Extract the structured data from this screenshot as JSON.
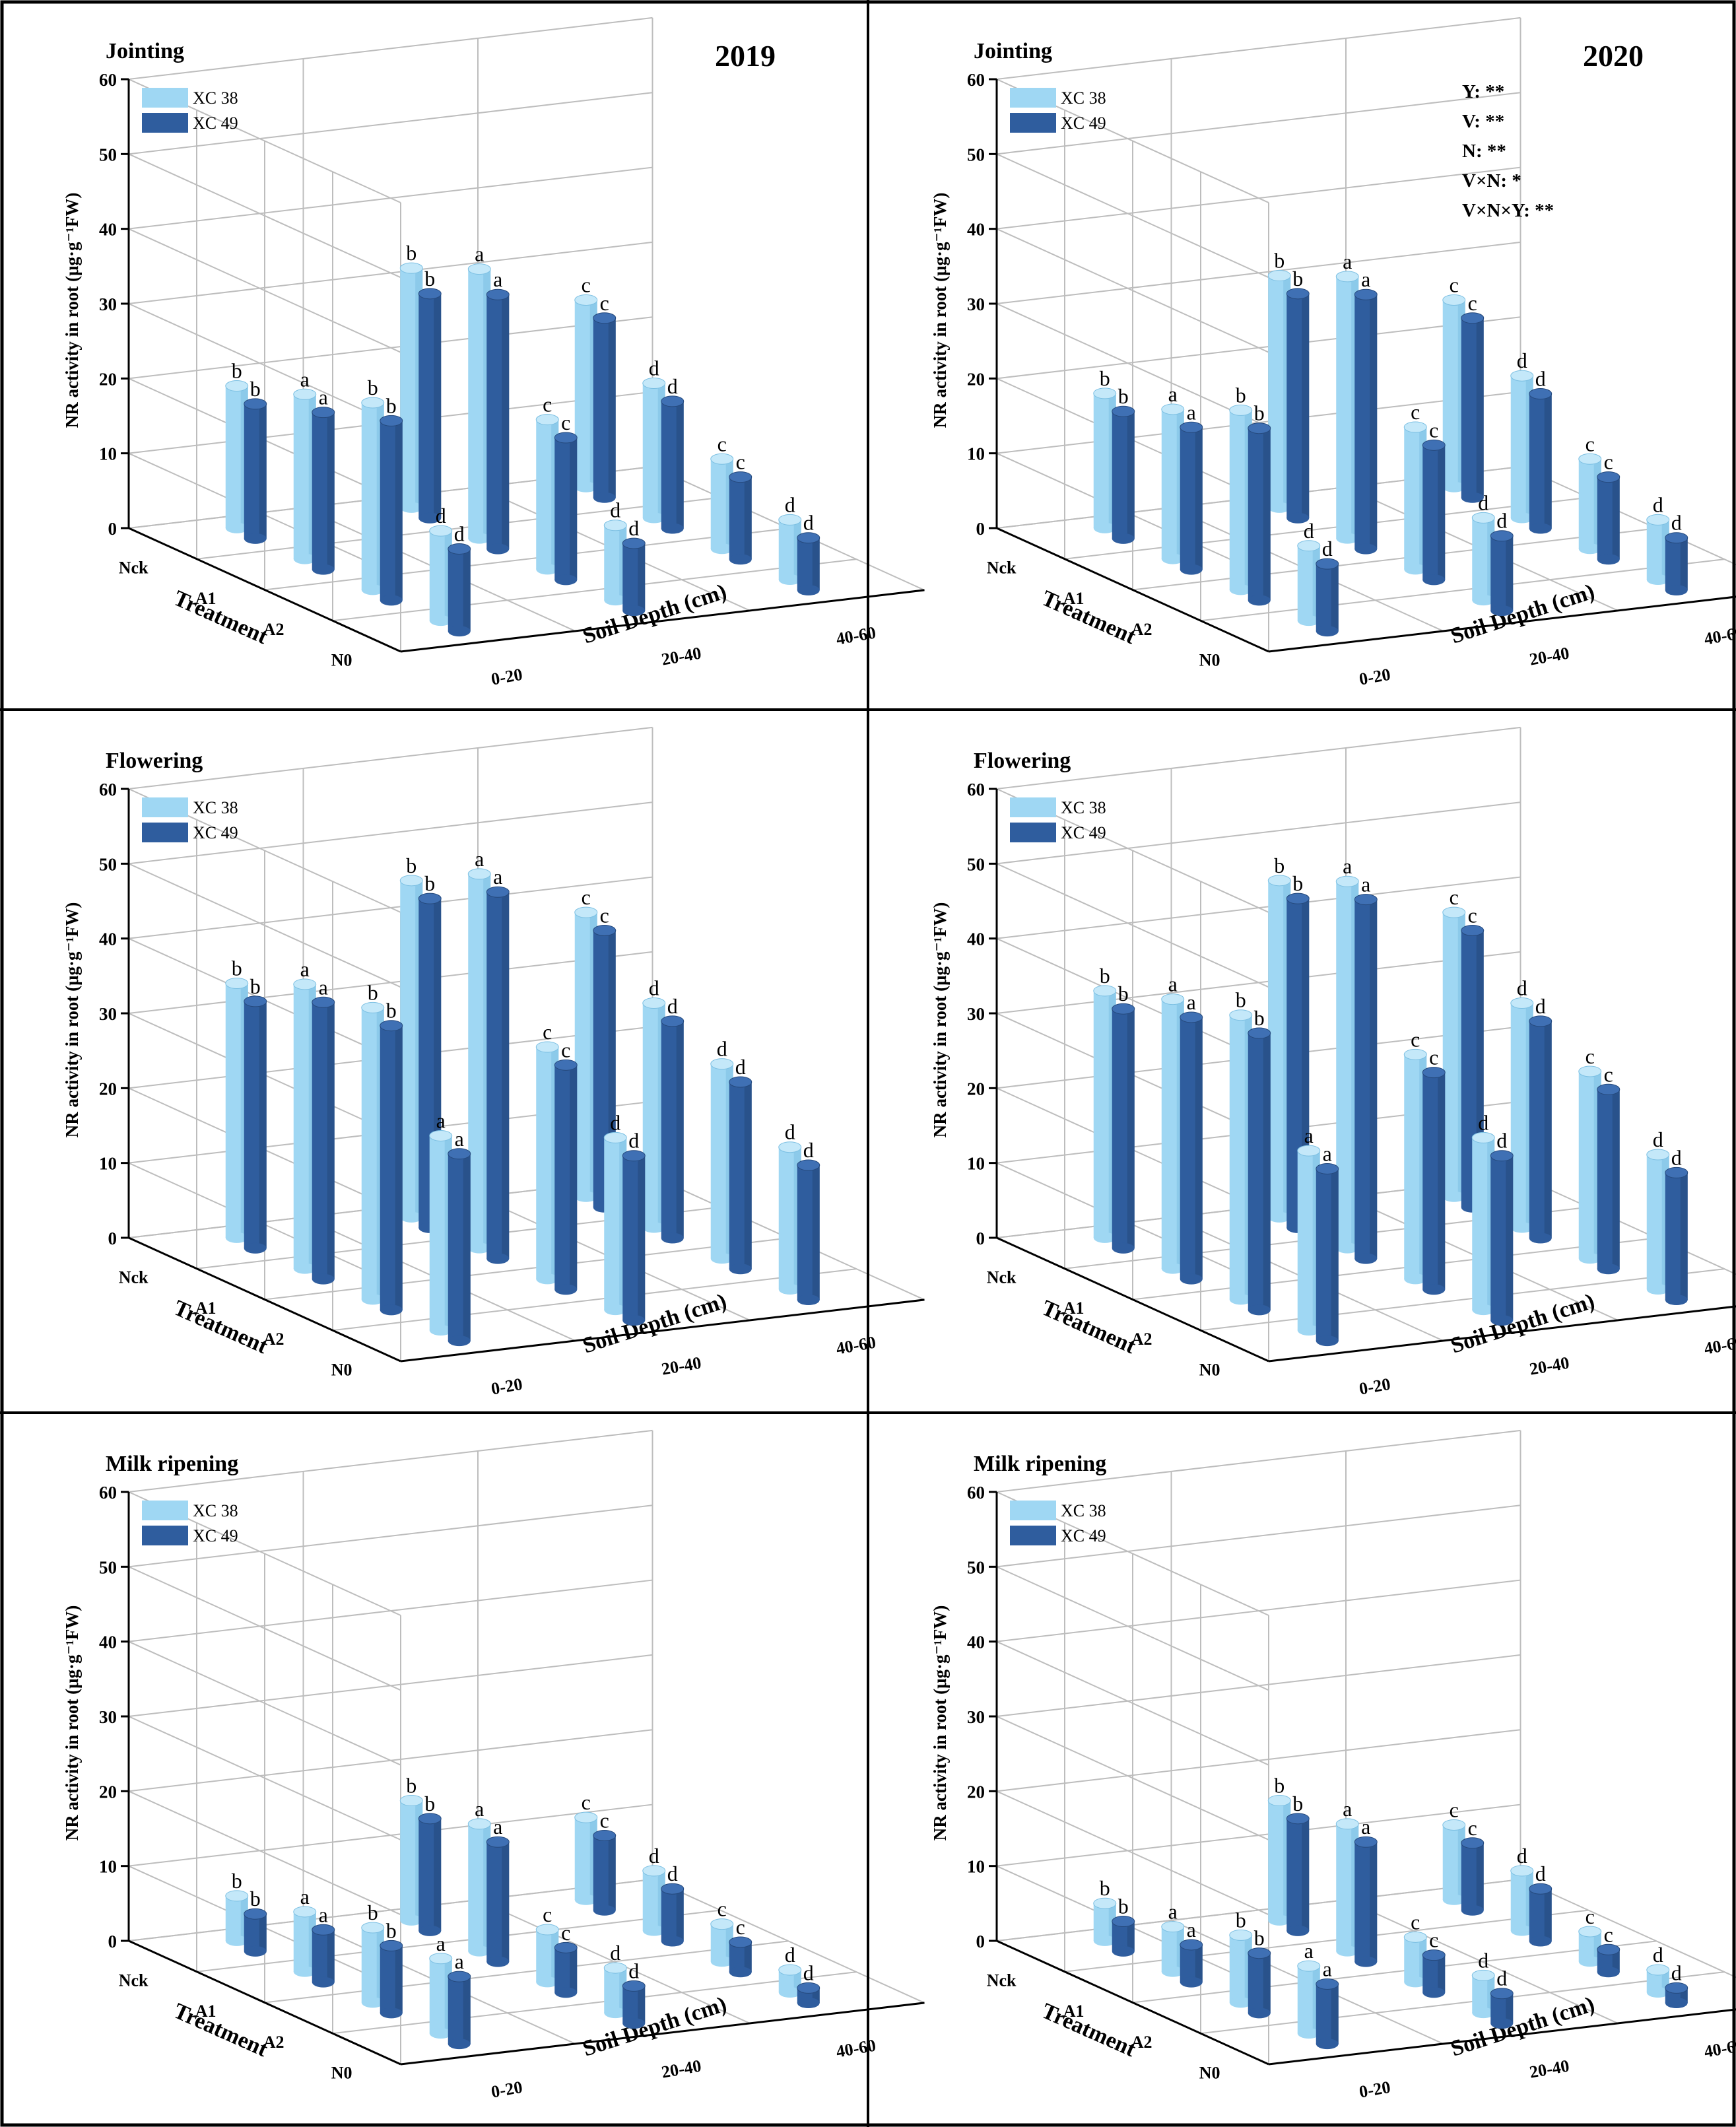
{
  "figure": {
    "ylabel": "NR activity in root (μg·g⁻¹FW)",
    "xlabel": "Soil Depth (cm)",
    "zlabel": "Treatment",
    "y_ticks": [
      "0",
      "10",
      "20",
      "30",
      "40",
      "50",
      "60"
    ],
    "depth_ticks": [
      "0-20",
      "20-40",
      "40-60"
    ],
    "treatment_ticks": [
      "Nck",
      "A1",
      "A2",
      "N0"
    ],
    "legend": [
      "XC 38",
      "XC 49"
    ],
    "colors": {
      "XC 38": "#9fd7f3",
      "XC 49": "#2f5d9e",
      "grid": "#bdbdbd",
      "frame": "#000000"
    }
  },
  "chart_data": [
    {
      "type": "bar",
      "panel": "2019-jointing",
      "title": "Jointing",
      "year_label": "2019",
      "stats": [],
      "ylim": [
        0,
        60
      ],
      "treatments": [
        "Nck",
        "A1",
        "A2",
        "N0"
      ],
      "depths": [
        "0-20",
        "20-40",
        "40-60"
      ],
      "series": [
        {
          "name": "XC 38",
          "values": [
            [
              19,
              32,
              25
            ],
            [
              22,
              36,
              18
            ],
            [
              25,
              20,
              12
            ],
            [
              12,
              10,
              8
            ]
          ]
        },
        {
          "name": "XC 49",
          "values": [
            [
              18,
              30,
              24
            ],
            [
              21,
              34,
              17
            ],
            [
              24,
              19,
              11
            ],
            [
              11,
              9,
              7
            ]
          ]
        }
      ],
      "letters": [
        [
          "b",
          "b",
          "c"
        ],
        [
          "a",
          "a",
          "d"
        ],
        [
          "b",
          "c",
          "c"
        ],
        [
          "d",
          "d",
          "d"
        ]
      ]
    },
    {
      "type": "bar",
      "panel": "2020-jointing",
      "title": "Jointing",
      "year_label": "2020",
      "stats": [
        "Y: **",
        "V: **",
        "N: **",
        "V×N: *",
        "V×N×Y: **"
      ],
      "ylim": [
        0,
        60
      ],
      "treatments": [
        "Nck",
        "A1",
        "A2",
        "N0"
      ],
      "depths": [
        "0-20",
        "20-40",
        "40-60"
      ],
      "series": [
        {
          "name": "XC 38",
          "values": [
            [
              18,
              31,
              25
            ],
            [
              20,
              35,
              19
            ],
            [
              24,
              19,
              12
            ],
            [
              10,
              11,
              8
            ]
          ]
        },
        {
          "name": "XC 49",
          "values": [
            [
              17,
              30,
              24
            ],
            [
              19,
              34,
              18
            ],
            [
              23,
              18,
              11
            ],
            [
              9,
              10,
              7
            ]
          ]
        }
      ],
      "letters": [
        [
          "b",
          "b",
          "c"
        ],
        [
          "a",
          "a",
          "d"
        ],
        [
          "b",
          "c",
          "c"
        ],
        [
          "d",
          "d",
          "d"
        ]
      ]
    },
    {
      "type": "bar",
      "panel": "2019-flowering",
      "title": "Flowering",
      "year_label": "",
      "stats": [],
      "ylim": [
        0,
        60
      ],
      "treatments": [
        "Nck",
        "A1",
        "A2",
        "N0"
      ],
      "depths": [
        "0-20",
        "20-40",
        "40-60"
      ],
      "series": [
        {
          "name": "XC 38",
          "values": [
            [
              34,
              45,
              38
            ],
            [
              38,
              50,
              30
            ],
            [
              39,
              31,
              26
            ],
            [
              26,
              23,
              19
            ]
          ]
        },
        {
          "name": "XC 49",
          "values": [
            [
              33,
              44,
              37
            ],
            [
              37,
              49,
              29
            ],
            [
              38,
              30,
              25
            ],
            [
              25,
              22,
              18
            ]
          ]
        }
      ],
      "letters": [
        [
          "b",
          "b",
          "c"
        ],
        [
          "a",
          "a",
          "d"
        ],
        [
          "b",
          "c",
          "d"
        ],
        [
          "a",
          "d",
          "d"
        ]
      ]
    },
    {
      "type": "bar",
      "panel": "2020-flowering",
      "title": "Flowering",
      "year_label": "",
      "stats": [],
      "ylim": [
        0,
        60
      ],
      "treatments": [
        "Nck",
        "A1",
        "A2",
        "N0"
      ],
      "depths": [
        "0-20",
        "20-40",
        "40-60"
      ],
      "series": [
        {
          "name": "XC 38",
          "values": [
            [
              33,
              45,
              38
            ],
            [
              36,
              49,
              30
            ],
            [
              38,
              30,
              25
            ],
            [
              24,
              23,
              18
            ]
          ]
        },
        {
          "name": "XC 49",
          "values": [
            [
              32,
              44,
              37
            ],
            [
              35,
              48,
              29
            ],
            [
              37,
              29,
              24
            ],
            [
              23,
              22,
              17
            ]
          ]
        }
      ],
      "letters": [
        [
          "b",
          "b",
          "c"
        ],
        [
          "a",
          "a",
          "d"
        ],
        [
          "b",
          "c",
          "c"
        ],
        [
          "a",
          "d",
          "d"
        ]
      ]
    },
    {
      "type": "bar",
      "panel": "2019-milk",
      "title": "Milk ripening",
      "year_label": "",
      "stats": [],
      "ylim": [
        0,
        60
      ],
      "treatments": [
        "Nck",
        "A1",
        "A2",
        "N0"
      ],
      "depths": [
        "0-20",
        "20-40",
        "40-60"
      ],
      "series": [
        {
          "name": "XC 38",
          "values": [
            [
              6,
              16,
              11
            ],
            [
              8,
              17,
              8
            ],
            [
              10,
              7,
              5
            ],
            [
              10,
              6,
              3
            ]
          ]
        },
        {
          "name": "XC 49",
          "values": [
            [
              5,
              15,
              10
            ],
            [
              7,
              16,
              7
            ],
            [
              9,
              6,
              4
            ],
            [
              9,
              5,
              2
            ]
          ]
        }
      ],
      "letters": [
        [
          "b",
          "b",
          "c"
        ],
        [
          "a",
          "a",
          "d"
        ],
        [
          "b",
          "c",
          "c"
        ],
        [
          "a",
          "d",
          "d"
        ]
      ]
    },
    {
      "type": "bar",
      "panel": "2020-milk",
      "title": "Milk ripening",
      "year_label": "",
      "stats": [],
      "ylim": [
        0,
        60
      ],
      "treatments": [
        "Nck",
        "A1",
        "A2",
        "N0"
      ],
      "depths": [
        "0-20",
        "20-40",
        "40-60"
      ],
      "series": [
        {
          "name": "XC 38",
          "values": [
            [
              5,
              16,
              10
            ],
            [
              6,
              17,
              8
            ],
            [
              9,
              6,
              4
            ],
            [
              9,
              5,
              3
            ]
          ]
        },
        {
          "name": "XC 49",
          "values": [
            [
              4,
              15,
              9
            ],
            [
              5,
              16,
              7
            ],
            [
              8,
              5,
              3
            ],
            [
              8,
              4,
              2
            ]
          ]
        }
      ],
      "letters": [
        [
          "b",
          "b",
          "c"
        ],
        [
          "a",
          "a",
          "d"
        ],
        [
          "b",
          "c",
          "c"
        ],
        [
          "a",
          "d",
          "d"
        ]
      ]
    }
  ]
}
